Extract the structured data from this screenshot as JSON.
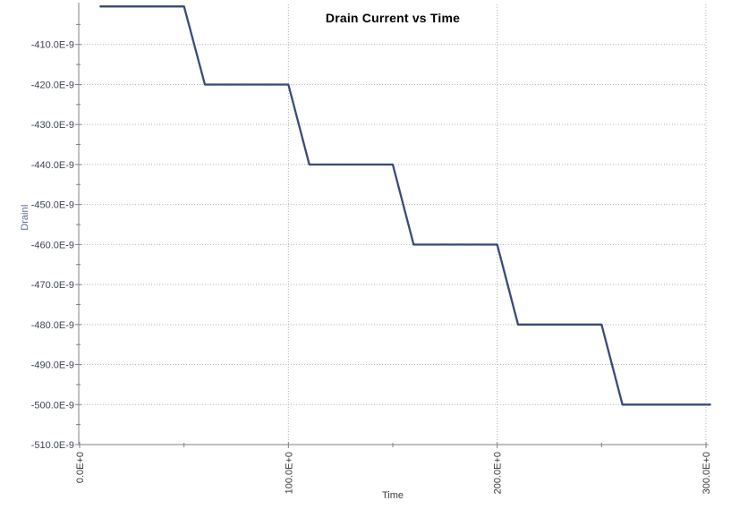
{
  "window": {
    "background_color": "#ffffff"
  },
  "colors": {
    "series_line": "#3b4a7c",
    "axis_line": "#808080",
    "grid_dots": "#b3b3b3",
    "y_tick_label_text": "#3f4456",
    "x_tick_label_text": "#3a3a3a",
    "y_axis_title_text": "#5d6a8c",
    "x_axis_title_text": "#3a3a3a",
    "title_text": "#000000"
  },
  "chart_data": {
    "type": "line",
    "title": "Drain Current vs Time",
    "xlabel": "Time",
    "ylabel": "DrainI",
    "grid": {
      "horizontal": "dotted",
      "vertical": "dotted"
    },
    "legend_position": "none",
    "x_axis": {
      "min": 0,
      "max": 300,
      "label_rotation_deg": -90,
      "major_ticks": [
        {
          "value": 0,
          "label": "0.0E+0"
        },
        {
          "value": 100,
          "label": "100.0E+0"
        },
        {
          "value": 200,
          "label": "200.0E+0"
        },
        {
          "value": 300,
          "label": "300.0E+0"
        }
      ],
      "minor_ticks": [
        50,
        150,
        250
      ]
    },
    "y_axis": {
      "min": -510,
      "max": -400,
      "unit_suffix_shown_in_labels": "E-9",
      "major_ticks": [
        {
          "value": -410,
          "label": "-410.0E-9"
        },
        {
          "value": -420,
          "label": "-420.0E-9"
        },
        {
          "value": -430,
          "label": "-430.0E-9"
        },
        {
          "value": -440,
          "label": "-440.0E-9"
        },
        {
          "value": -450,
          "label": "-450.0E-9"
        },
        {
          "value": -460,
          "label": "-460.0E-9"
        },
        {
          "value": -470,
          "label": "-470.0E-9"
        },
        {
          "value": -480,
          "label": "-480.0E-9"
        },
        {
          "value": -490,
          "label": "-490.0E-9"
        },
        {
          "value": -500,
          "label": "-500.0E-9"
        },
        {
          "value": -510,
          "label": "-510.0E-9"
        }
      ],
      "minor_ticks": [
        -405,
        -415,
        -425,
        -435,
        -445,
        -455,
        -465,
        -475,
        -485,
        -495,
        -505
      ]
    },
    "series": [
      {
        "name": "DrainI",
        "color": "#3b4a7c",
        "points": [
          [
            10,
            -400.5
          ],
          [
            50,
            -400.5
          ],
          [
            60,
            -420
          ],
          [
            100,
            -420
          ],
          [
            110,
            -440
          ],
          [
            150,
            -440
          ],
          [
            160,
            -460
          ],
          [
            200,
            -460
          ],
          [
            210,
            -480
          ],
          [
            250,
            -480
          ],
          [
            260,
            -500
          ],
          [
            302,
            -500
          ]
        ]
      }
    ]
  }
}
